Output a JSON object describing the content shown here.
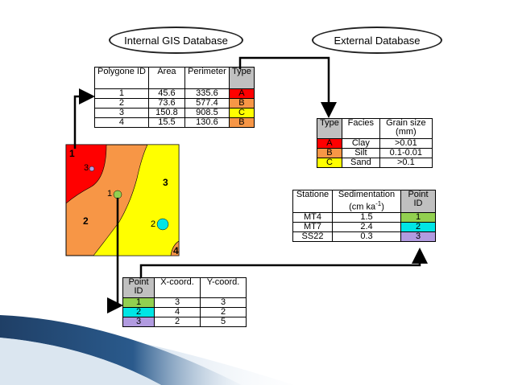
{
  "colors": {
    "red": "#ff0000",
    "orange": "#f79646",
    "yellow": "#ffff00",
    "green": "#92d050",
    "cyan": "#00e5e5",
    "violet": "#b19be0",
    "header_gray": "#c0c0c0"
  },
  "labels": {
    "internal_db": "Internal GIS Database",
    "external_db": "External Database"
  },
  "polygon_table": {
    "headers": [
      "Polygone ID",
      "Area",
      "Perimeter",
      "Type"
    ],
    "rows": [
      {
        "id": "1",
        "area": "45.6",
        "perimeter": "335.6",
        "type": "A"
      },
      {
        "id": "2",
        "area": "73.6",
        "perimeter": "577.4",
        "type": "B"
      },
      {
        "id": "3",
        "area": "150.8",
        "perimeter": "908.5",
        "type": "C"
      },
      {
        "id": "4",
        "area": "15.5",
        "perimeter": "130.6",
        "type": "B"
      }
    ]
  },
  "facies_table": {
    "headers": [
      "Type",
      "Facies",
      "Grain size (mm)"
    ],
    "rows": [
      {
        "type": "A",
        "facies": "Clay",
        "grain": ">0.01"
      },
      {
        "type": "B",
        "facies": "Silt",
        "grain": "0.1-0.01"
      },
      {
        "type": "C",
        "facies": "Sand",
        "grain": ">0.1"
      }
    ]
  },
  "sed_table": {
    "headers": [
      "Stationе",
      "Sedimentation",
      "(cm ka",
      "-1",
      ")",
      "Point ID"
    ],
    "rows": [
      {
        "station": "MT4",
        "sed": "1.5",
        "pid": "1"
      },
      {
        "station": "MT7",
        "sed": "2.4",
        "pid": "2"
      },
      {
        "station": "SS22",
        "sed": "0.3",
        "pid": "3"
      }
    ]
  },
  "point_table": {
    "headers": [
      "Point ID",
      "X-coord.",
      "Y-coord."
    ],
    "rows": [
      {
        "pid": "1",
        "x": "3",
        "y": "3"
      },
      {
        "pid": "2",
        "x": "4",
        "y": "2"
      },
      {
        "pid": "3",
        "x": "2",
        "y": "5"
      }
    ]
  },
  "map": {
    "polygon_labels": [
      "1",
      "2",
      "3",
      "4"
    ],
    "point_labels": [
      "1",
      "2",
      "3"
    ]
  }
}
